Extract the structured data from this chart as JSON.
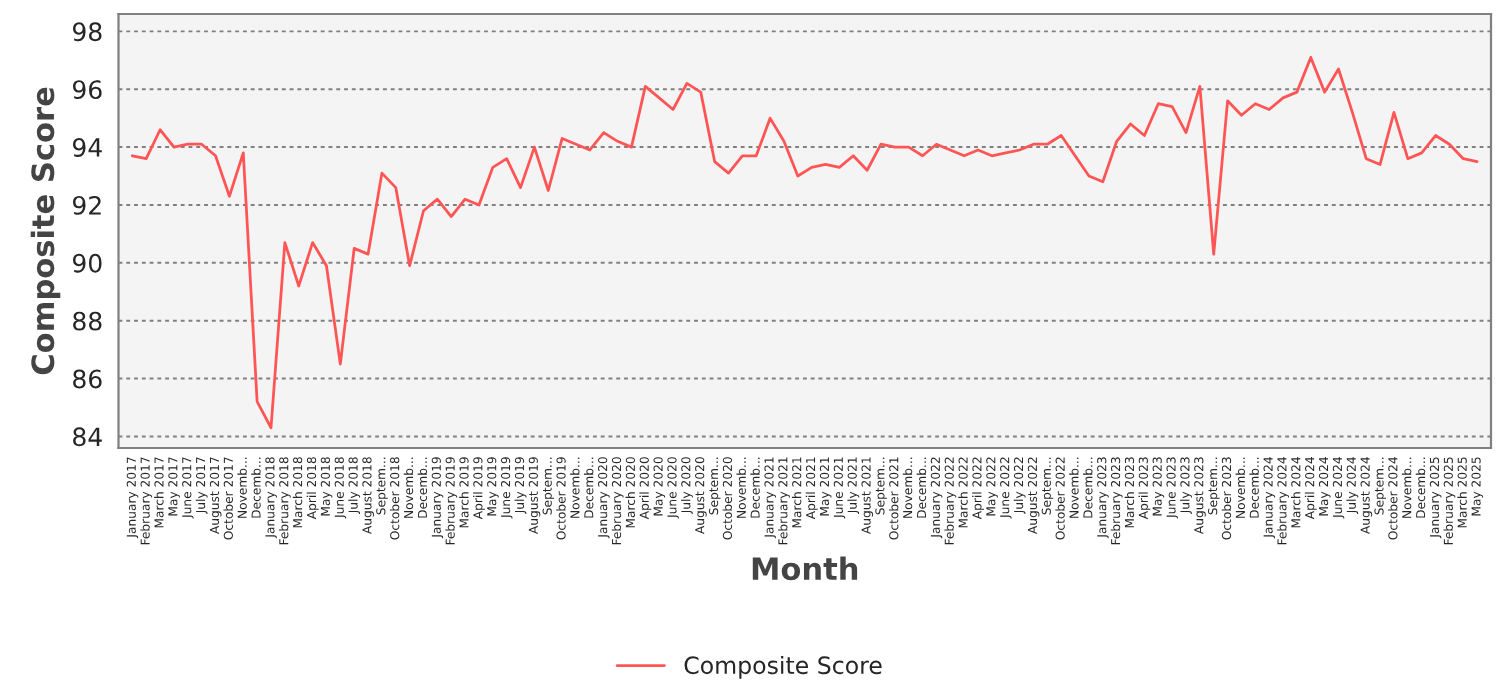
{
  "chart_data": {
    "type": "line",
    "xlabel": "Month",
    "ylabel": "Composite Score",
    "categories": [
      "January 2017",
      "February 2017",
      "March 2017",
      "May 2017",
      "June 2017",
      "July 2017",
      "August 2017",
      "October 2017",
      "Novemb...",
      "Decemb...",
      "January 2018",
      "February 2018",
      "March 2018",
      "April 2018",
      "May 2018",
      "June 2018",
      "July 2018",
      "August 2018",
      "Septem...",
      "October 2018",
      "Novemb...",
      "Decemb...",
      "January 2019",
      "February 2019",
      "March 2019",
      "April 2019",
      "May 2019",
      "June 2019",
      "July 2019",
      "August 2019",
      "Septem...",
      "October 2019",
      "Novemb...",
      "Decemb...",
      "January 2020",
      "February 2020",
      "March 2020",
      "April 2020",
      "May 2020",
      "June 2020",
      "July 2020",
      "August 2020",
      "Septem...",
      "October 2020",
      "Novemb...",
      "Decemb...",
      "January 2021",
      "February 2021",
      "March 2021",
      "April 2021",
      "May 2021",
      "June 2021",
      "July 2021",
      "August 2021",
      "Septem...",
      "October 2021",
      "Novemb...",
      "Decemb...",
      "January 2022",
      "February 2022",
      "March 2022",
      "April 2022",
      "May 2022",
      "June 2022",
      "July 2022",
      "August 2022",
      "Septem...",
      "October 2022",
      "Novemb...",
      "Decemb...",
      "January 2023",
      "February 2023",
      "March 2023",
      "April 2023",
      "May 2023",
      "June 2023",
      "July 2023",
      "August 2023",
      "Septem...",
      "October 2023",
      "Novemb...",
      "Decemb...",
      "January 2024",
      "February 2024",
      "March 2024",
      "April 2024",
      "May 2024",
      "June 2024",
      "July 2024",
      "August 2024",
      "Septem...",
      "October 2024",
      "Novemb...",
      "Decemb...",
      "January 2025",
      "February 2025",
      "March 2025",
      "May 2025"
    ],
    "series": [
      {
        "name": "Composite Score",
        "color": "#ff5555",
        "values": [
          93.7,
          93.6,
          94.6,
          94.0,
          94.1,
          94.1,
          93.7,
          92.3,
          93.8,
          85.2,
          84.3,
          90.7,
          89.2,
          90.7,
          89.9,
          86.5,
          90.5,
          90.3,
          93.1,
          92.6,
          89.9,
          91.8,
          92.2,
          91.6,
          92.2,
          92.0,
          93.3,
          93.6,
          92.6,
          94.0,
          92.5,
          94.3,
          94.1,
          93.9,
          94.5,
          94.2,
          94.0,
          96.1,
          95.7,
          95.3,
          96.2,
          95.9,
          93.5,
          93.1,
          93.7,
          93.7,
          95.0,
          94.2,
          93.0,
          93.3,
          93.4,
          93.3,
          93.7,
          93.2,
          94.1,
          94.0,
          94.0,
          93.7,
          94.1,
          93.9,
          93.7,
          93.9,
          93.7,
          93.8,
          93.9,
          94.1,
          94.1,
          94.4,
          93.7,
          93.0,
          92.8,
          94.2,
          94.8,
          94.4,
          95.5,
          95.4,
          94.5,
          96.1,
          90.3,
          95.6,
          95.1,
          95.5,
          95.3,
          95.7,
          95.9,
          97.1,
          95.9,
          96.7,
          95.2,
          93.6,
          93.4,
          95.2,
          93.6,
          93.8,
          94.4,
          94.1,
          93.6,
          93.5
        ]
      }
    ],
    "ylim": [
      83.6,
      98.6
    ],
    "yticks": [
      84,
      86,
      88,
      90,
      92,
      94,
      96,
      98
    ],
    "grid": "y",
    "legend": "bottom",
    "line_style": "solid",
    "marker": "none"
  }
}
